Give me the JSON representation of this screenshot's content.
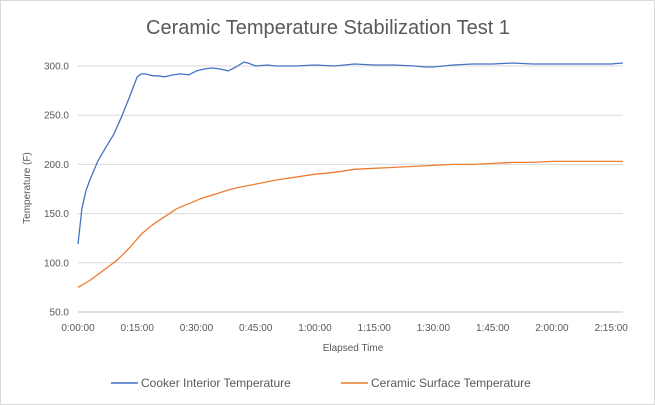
{
  "chart_data": {
    "type": "line",
    "title": "Ceramic Temperature Stabilization Test 1",
    "xlabel": "Elapsed Time",
    "ylabel": "Temperature (F)",
    "ylim": [
      50,
      300
    ],
    "y_ticks": [
      "50.0",
      "100.0",
      "150.0",
      "200.0",
      "250.0",
      "300.0"
    ],
    "x_unit": "minutes",
    "xlim": [
      0,
      138
    ],
    "x_ticks": [
      "0:00:00",
      "0:15:00",
      "0:30:00",
      "0:45:00",
      "1:00:00",
      "1:15:00",
      "1:30:00",
      "1:45:00",
      "2:00:00",
      "2:15:00"
    ],
    "grid": "horizontal",
    "legend_position": "bottom",
    "series": [
      {
        "name": "Cooker Interior Temperature",
        "color": "#4472C4",
        "x": [
          0,
          1,
          2,
          3,
          5,
          7,
          9,
          11,
          13,
          15,
          16,
          17,
          18,
          19,
          20,
          22,
          24,
          26,
          28,
          30,
          32,
          34,
          36,
          38,
          40,
          42,
          43,
          45,
          48,
          50,
          55,
          60,
          65,
          70,
          75,
          80,
          85,
          88,
          90,
          95,
          100,
          105,
          110,
          115,
          120,
          125,
          130,
          135,
          138
        ],
        "y": [
          119,
          155,
          173,
          184,
          203,
          217,
          230,
          248,
          268,
          289,
          292,
          292,
          291,
          290,
          290,
          289,
          291,
          292,
          291,
          295,
          297,
          298,
          297,
          295,
          299,
          304,
          303,
          300,
          301,
          300,
          300,
          301,
          300,
          302,
          301,
          301,
          300,
          299,
          299,
          301,
          302,
          302,
          303,
          302,
          302,
          302,
          302,
          302,
          303
        ]
      },
      {
        "name": "Ceramic Surface Temperature",
        "color": "#ED7D31",
        "x": [
          0,
          3,
          6,
          10,
          13,
          16,
          19,
          22,
          25,
          28,
          31,
          35,
          38,
          40,
          45,
          50,
          55,
          60,
          65,
          70,
          75,
          80,
          85,
          90,
          95,
          100,
          105,
          110,
          115,
          120,
          125,
          130,
          135,
          138
        ],
        "y": [
          75,
          82,
          91,
          103,
          115,
          129,
          139,
          147,
          155,
          160,
          165,
          170,
          174,
          176,
          180,
          184,
          187,
          190,
          192,
          195,
          196,
          197,
          198,
          199,
          200,
          200,
          201,
          202,
          202,
          203,
          203,
          203,
          203,
          203
        ]
      }
    ]
  }
}
